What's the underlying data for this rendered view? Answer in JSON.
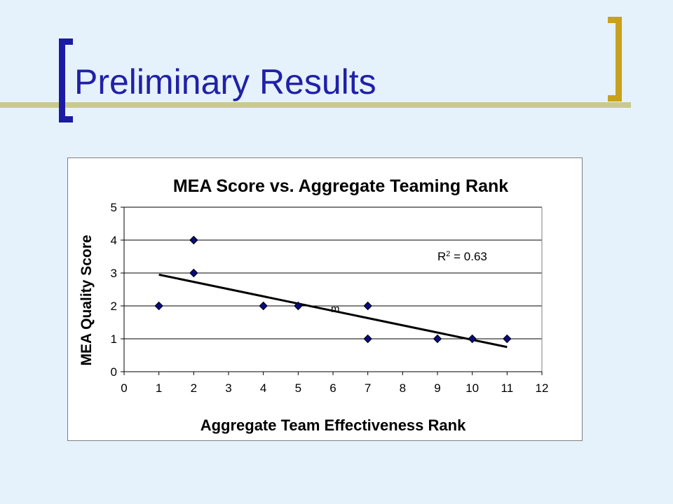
{
  "slide": {
    "title": "Preliminary Results"
  },
  "colors": {
    "background": "#e6f2fb",
    "title": "#2020a8",
    "bracket_left": "#1a1aa6",
    "bracket_right": "#c8a21e",
    "accent_bar": "#c9c98e",
    "marker": "#0a0a80",
    "trendline": "#000000"
  },
  "chart_data": {
    "type": "scatter",
    "title": "MEA Score vs. Aggregate Teaming Rank",
    "xlabel": "Aggregate Team Effectiveness Rank",
    "ylabel": "MEA Quality Score",
    "xlim": [
      0,
      12
    ],
    "ylim": [
      0,
      5
    ],
    "xticks": [
      "0",
      "1",
      "2",
      "3",
      "4",
      "5",
      "6",
      "7",
      "8",
      "9",
      "10",
      "11",
      "12"
    ],
    "yticks": [
      "0",
      "1",
      "2",
      "3",
      "4",
      "5"
    ],
    "grid": "horizontal",
    "points": [
      {
        "x": 1,
        "y": 2
      },
      {
        "x": 2,
        "y": 4
      },
      {
        "x": 2,
        "y": 3
      },
      {
        "x": 4,
        "y": 2
      },
      {
        "x": 5,
        "y": 2
      },
      {
        "x": 7,
        "y": 2
      },
      {
        "x": 7,
        "y": 1
      },
      {
        "x": 9,
        "y": 1
      },
      {
        "x": 10,
        "y": 1
      },
      {
        "x": 11,
        "y": 1
      }
    ],
    "trendline": {
      "x": [
        1,
        11
      ],
      "y": [
        2.95,
        0.75
      ]
    },
    "annotation": {
      "r2_prefix": "R",
      "r2_sup": "2",
      "r2_value": " = 0.63",
      "trend_label": "m"
    }
  }
}
